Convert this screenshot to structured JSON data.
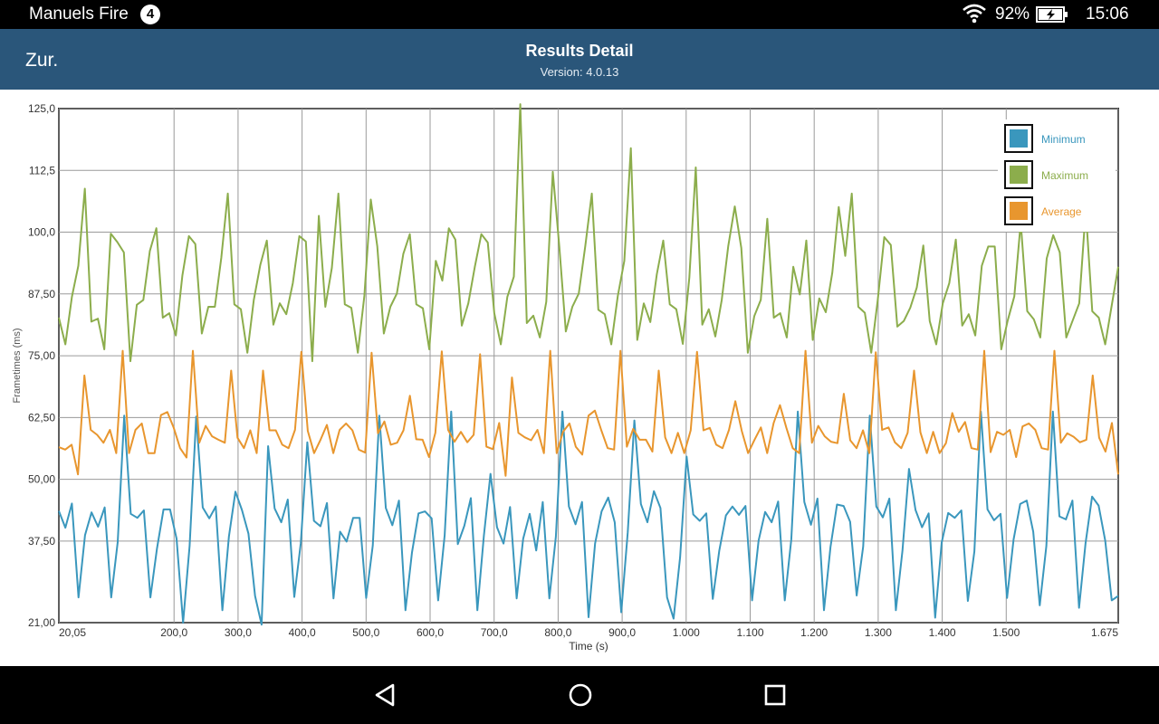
{
  "status_bar": {
    "device_name": "Manuels Fire",
    "notification_count": "4",
    "battery": "92%",
    "time": "15:06",
    "icons": [
      "wifi-icon",
      "battery-charging-icon"
    ]
  },
  "header": {
    "back_label": "Zur.",
    "title": "Results Detail",
    "version": "Version: 4.0.13",
    "color": "#2a567a"
  },
  "nav": {
    "icons": [
      "back-triangle-icon",
      "home-circle-icon",
      "recents-square-icon"
    ]
  },
  "chart_data": {
    "type": "line",
    "xlabel": "Time (s)",
    "ylabel": "Frametimes (ms)",
    "ylim": [
      21,
      125
    ],
    "xlim": [
      20.05,
      1675
    ],
    "y_ticks": [
      "21,00",
      "37,50",
      "50,00",
      "62,50",
      "75,00",
      "87,50",
      "100,0",
      "112,5",
      "125,0"
    ],
    "y_tick_values": [
      21,
      37.5,
      50,
      62.5,
      75,
      87.5,
      100,
      112.5,
      125
    ],
    "x_ticks": [
      "20,05",
      "200,0",
      "300,0",
      "400,0",
      "500,0",
      "600,0",
      "700,0",
      "800,0",
      "900,0",
      "1.000",
      "1.100",
      "1.200",
      "1.300",
      "1.400",
      "1.500",
      "1.675"
    ],
    "x_tick_values": [
      20.05,
      200,
      300,
      400,
      500,
      600,
      700,
      800,
      900,
      1000,
      1100,
      1200,
      1300,
      1400,
      1500,
      1675
    ],
    "grid": true,
    "legend_position": "top-right",
    "series": [
      {
        "name": "Minimum",
        "color": "#3a97bd",
        "values": [
          43.6,
          40.2,
          45.1,
          26.1,
          38.7,
          43.3,
          40.4,
          44.3,
          26.1,
          37.3,
          62.9,
          43.0,
          42.2,
          43.7,
          26.1,
          35.9,
          43.9,
          43.9,
          38.0,
          21.0,
          36.5,
          62.7,
          44.3,
          42.1,
          44.5,
          23.5,
          38.4,
          47.5,
          43.8,
          39.0,
          26.4,
          20.6,
          56.7,
          44.1,
          41.3,
          45.9,
          26.2,
          37.1,
          57.5,
          41.6,
          40.5,
          45.2,
          25.9,
          39.4,
          37.4,
          42.2,
          42.2,
          26.0,
          36.6,
          62.9,
          44.2,
          40.7,
          45.7,
          23.5,
          35.2,
          43.1,
          43.5,
          42.1,
          25.5,
          38.7,
          63.7,
          36.9,
          40.6,
          46.2,
          23.5,
          38.6,
          51.1,
          40.3,
          37.0,
          44.4,
          25.9,
          38.0,
          43.0,
          35.6,
          45.4,
          25.9,
          38.4,
          63.7,
          44.5,
          40.9,
          45.4,
          22.1,
          37.0,
          43.5,
          46.3,
          41.3,
          23.1,
          39.3,
          61.9,
          45.0,
          41.3,
          47.6,
          44.2,
          26.1,
          21.8,
          34.2,
          54.6,
          42.9,
          41.6,
          43.1,
          25.8,
          35.6,
          42.7,
          44.5,
          42.8,
          44.6,
          25.5,
          37.6,
          43.4,
          41.3,
          45.5,
          25.5,
          37.8,
          63.7,
          45.4,
          40.8,
          46.1,
          23.5,
          36.3,
          44.9,
          44.6,
          41.4,
          26.5,
          36.4,
          62.9,
          44.5,
          42.3,
          46.1,
          23.5,
          35.6,
          52.1,
          43.8,
          40.3,
          43.1,
          22.0,
          37.2,
          43.2,
          42.2,
          43.7,
          25.4,
          35.4,
          63.7,
          43.9,
          41.7,
          43.0,
          26.0,
          37.8,
          45.0,
          45.7,
          39.4,
          24.5,
          36.5,
          63.7,
          42.5,
          41.9,
          45.7,
          24.0,
          37.1,
          46.5,
          44.7,
          37.6,
          25.5,
          26.4
        ]
      },
      {
        "name": "Maximum",
        "color": "#8cad4c",
        "values": [
          82.7,
          77.3,
          86.9,
          93.2,
          108.8,
          81.9,
          82.5,
          76.3,
          99.7,
          98.0,
          95.9,
          73.9,
          85.3,
          86.3,
          96.2,
          100.8,
          82.7,
          83.6,
          79.1,
          91.2,
          99.2,
          97.6,
          79.5,
          84.9,
          84.9,
          94.8,
          107.8,
          85.4,
          84.4,
          75.6,
          86.3,
          93.4,
          98.3,
          81.3,
          85.6,
          83.4,
          89.7,
          99.2,
          98.1,
          73.9,
          103.3,
          84.9,
          92.8,
          107.8,
          85.4,
          84.7,
          75.6,
          87.1,
          106.6,
          97.1,
          79.5,
          84.9,
          87.6,
          95.6,
          99.6,
          85.4,
          84.6,
          76.3,
          94.2,
          90.2,
          100.8,
          98.5,
          81.1,
          85.6,
          93.0,
          99.6,
          97.9,
          83.6,
          77.3,
          86.9,
          91.0,
          125.9,
          81.6,
          83.1,
          78.7,
          85.9,
          112.2,
          97.1,
          79.9,
          84.9,
          87.6,
          97.2,
          107.8,
          84.3,
          83.4,
          77.3,
          87.1,
          94.2,
          117.0,
          78.2,
          85.6,
          81.8,
          91.5,
          98.3,
          85.4,
          84.4,
          77.4,
          90.8,
          113.1,
          81.3,
          84.4,
          78.9,
          86.3,
          97.2,
          105.2,
          96.8,
          75.6,
          83.0,
          86.3,
          102.7,
          82.7,
          83.6,
          78.7,
          93.0,
          87.4,
          98.3,
          78.2,
          86.6,
          83.8,
          91.8,
          105.1,
          95.2,
          107.8,
          84.9,
          83.7,
          75.6,
          86.3,
          99.0,
          97.4,
          80.9,
          82.0,
          84.7,
          88.8,
          97.3,
          82.0,
          77.3,
          85.6,
          89.7,
          98.5,
          81.1,
          83.4,
          79.1,
          93.2,
          97.1,
          97.1,
          76.3,
          82.2,
          87.0,
          102.0,
          84.0,
          82.4,
          78.7,
          94.7,
          99.4,
          95.9,
          78.7,
          82.2,
          85.6,
          104.6,
          84.0,
          82.7,
          77.3,
          85.2,
          93.0
        ]
      },
      {
        "name": "Average",
        "color": "#e8962e",
        "values": [
          56.5,
          56.0,
          57.0,
          51.0,
          71.0,
          60.0,
          59.0,
          57.4,
          60.0,
          55.3,
          76.0,
          55.3,
          60.0,
          61.3,
          55.3,
          55.3,
          63.0,
          63.6,
          60.4,
          56.3,
          54.4,
          76.0,
          57.4,
          60.8,
          58.7,
          58.0,
          57.4,
          72.0,
          58.4,
          56.3,
          59.9,
          55.3,
          72.0,
          59.9,
          59.9,
          57.0,
          56.3,
          60.0,
          75.8,
          59.8,
          55.3,
          58.0,
          61.0,
          55.3,
          60.0,
          61.3,
          59.9,
          56.0,
          55.4,
          75.6,
          59.3,
          61.7,
          57.0,
          57.4,
          59.9,
          66.9,
          58.1,
          58.0,
          54.5,
          59.4,
          75.9,
          60.0,
          57.6,
          59.6,
          57.5,
          59.0,
          75.3,
          56.6,
          56.1,
          61.4,
          50.7,
          70.6,
          59.4,
          58.5,
          57.9,
          60.0,
          55.3,
          76.0,
          55.3,
          59.6,
          61.3,
          56.6,
          55.0,
          62.9,
          63.9,
          59.9,
          56.3,
          56.0,
          76.0,
          56.6,
          60.2,
          58.0,
          58.0,
          55.6,
          72.0,
          58.5,
          55.3,
          59.4,
          55.3,
          59.9,
          75.8,
          59.9,
          60.4,
          57.0,
          56.3,
          60.0,
          65.8,
          59.8,
          55.3,
          58.0,
          60.5,
          55.3,
          61.4,
          65.0,
          60.4,
          56.3,
          55.3,
          76.0,
          57.4,
          60.8,
          58.7,
          57.6,
          57.3,
          67.3,
          57.9,
          56.3,
          59.9,
          55.3,
          75.7,
          60.0,
          60.5,
          57.5,
          56.3,
          59.4,
          72.0,
          59.5,
          55.3,
          59.6,
          55.3,
          57.3,
          63.4,
          59.6,
          61.6,
          56.3,
          56.0,
          76.0,
          55.5,
          59.6,
          59.0,
          60.0,
          54.5,
          60.7,
          61.3,
          60.0,
          56.3,
          56.0,
          76.0,
          57.4,
          59.3,
          58.6,
          57.5,
          58.0,
          71.0,
          58.4,
          55.6,
          61.4,
          51.0
        ]
      }
    ]
  }
}
